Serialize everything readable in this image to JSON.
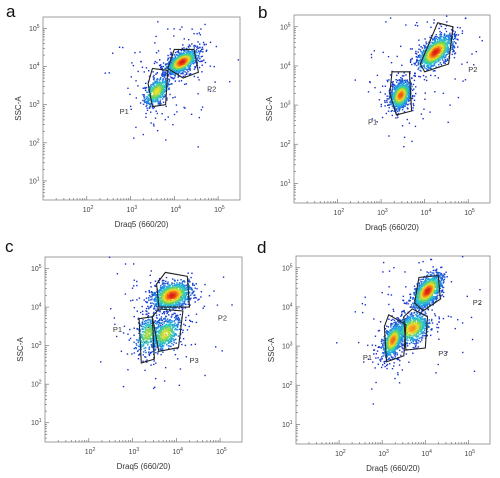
{
  "chart_data": [
    {
      "type": "scatter",
      "panel": "a",
      "xlabel": "Draq5 (660/20)",
      "ylabel": "SSC-A",
      "xlim": [
        1.0,
        5.5
      ],
      "ylim": [
        0.5,
        5.3
      ],
      "x_ticks": [
        {
          "v": 2,
          "label": "10^2"
        },
        {
          "v": 3,
          "label": "10^3"
        },
        {
          "v": 4,
          "label": "10^4"
        },
        {
          "v": 5,
          "label": "10^5"
        }
      ],
      "y_ticks": [
        {
          "v": 1,
          "label": "10^1"
        },
        {
          "v": 2,
          "label": "10^2"
        },
        {
          "v": 3,
          "label": "10^3"
        },
        {
          "v": 4,
          "label": "10^4"
        },
        {
          "v": 5,
          "label": "10^5"
        }
      ],
      "populations": [
        {
          "name": "P1",
          "x_log": 3.6,
          "y_log": 3.35,
          "sx": 0.15,
          "sy": 0.2,
          "rho": 0.5,
          "density": 0.45
        },
        {
          "name": "P2",
          "x_log": 4.18,
          "y_log": 4.12,
          "sx": 0.18,
          "sy": 0.16,
          "rho": 0.55,
          "density": 1.0
        }
      ],
      "gates": [
        {
          "name": "P1",
          "label_at": [
            2.75,
            2.75
          ],
          "vertices": [
            [
              3.4,
              3.55
            ],
            [
              3.5,
              3.95
            ],
            [
              3.85,
              3.9
            ],
            [
              3.8,
              3.0
            ],
            [
              3.5,
              2.95
            ]
          ]
        },
        {
          "name": "P2",
          "label_at": [
            4.75,
            3.35
          ],
          "vertices": [
            [
              3.85,
              3.95
            ],
            [
              4.0,
              4.45
            ],
            [
              4.45,
              4.45
            ],
            [
              4.55,
              3.85
            ],
            [
              4.2,
              3.7
            ]
          ]
        }
      ]
    },
    {
      "type": "scatter",
      "panel": "b",
      "xlabel": "Draq5 (660/20)",
      "ylabel": "SSC-A",
      "xlim": [
        1.0,
        5.5
      ],
      "ylim": [
        0.5,
        5.3
      ],
      "x_ticks": [
        {
          "v": 2,
          "label": "10^2"
        },
        {
          "v": 3,
          "label": "10^3"
        },
        {
          "v": 4,
          "label": "10^4"
        },
        {
          "v": 5,
          "label": "10^5"
        }
      ],
      "y_ticks": [
        {
          "v": 1,
          "label": "10^1"
        },
        {
          "v": 2,
          "label": "10^2"
        },
        {
          "v": 3,
          "label": "10^3"
        },
        {
          "v": 4,
          "label": "10^4"
        },
        {
          "v": 5,
          "label": "10^5"
        }
      ],
      "populations": [
        {
          "name": "P1",
          "x_log": 3.45,
          "y_log": 3.25,
          "sx": 0.12,
          "sy": 0.18,
          "rho": 0.35,
          "density": 0.85
        },
        {
          "name": "P2",
          "x_log": 4.25,
          "y_log": 4.35,
          "sx": 0.2,
          "sy": 0.22,
          "rho": 0.6,
          "density": 1.0
        }
      ],
      "gates": [
        {
          "name": "P1",
          "label_at": [
            2.7,
            2.5
          ],
          "vertices": [
            [
              3.2,
              3.3
            ],
            [
              3.25,
              3.85
            ],
            [
              3.65,
              3.85
            ],
            [
              3.7,
              2.85
            ],
            [
              3.35,
              2.75
            ]
          ]
        },
        {
          "name": "P2",
          "label_at": [
            5.0,
            3.85
          ],
          "vertices": [
            [
              3.9,
              4.05
            ],
            [
              4.3,
              5.1
            ],
            [
              4.65,
              5.0
            ],
            [
              4.55,
              4.05
            ],
            [
              4.0,
              3.85
            ]
          ]
        }
      ]
    },
    {
      "type": "scatter",
      "panel": "c",
      "xlabel": "Draq5 (660/20)",
      "ylabel": "SSC-A",
      "xlim": [
        1.0,
        5.5
      ],
      "ylim": [
        0.5,
        5.3
      ],
      "x_ticks": [
        {
          "v": 2,
          "label": "10^2"
        },
        {
          "v": 3,
          "label": "10^3"
        },
        {
          "v": 4,
          "label": "10^4"
        },
        {
          "v": 5,
          "label": "10^5"
        }
      ],
      "y_ticks": [
        {
          "v": 1,
          "label": "10^1"
        },
        {
          "v": 2,
          "label": "10^2"
        },
        {
          "v": 3,
          "label": "10^3"
        },
        {
          "v": 4,
          "label": "10^4"
        },
        {
          "v": 5,
          "label": "10^5"
        }
      ],
      "populations": [
        {
          "name": "P1",
          "x_log": 3.35,
          "y_log": 3.3,
          "sx": 0.15,
          "sy": 0.25,
          "rho": 0.4,
          "density": 0.3
        },
        {
          "name": "P2",
          "x_log": 3.9,
          "y_log": 4.3,
          "sx": 0.22,
          "sy": 0.18,
          "rho": 0.3,
          "density": 1.0
        },
        {
          "name": "P3",
          "x_log": 3.75,
          "y_log": 3.3,
          "sx": 0.18,
          "sy": 0.22,
          "rho": 0.4,
          "density": 0.45
        }
      ],
      "gates": [
        {
          "name": "P1",
          "label_at": [
            2.55,
            3.35
          ],
          "vertices": [
            [
              3.15,
              3.7
            ],
            [
              3.45,
              3.75
            ],
            [
              3.5,
              2.65
            ],
            [
              3.2,
              2.55
            ]
          ]
        },
        {
          "name": "P2",
          "label_at": [
            4.95,
            3.65
          ],
          "vertices": [
            [
              3.55,
              4.6
            ],
            [
              3.75,
              4.9
            ],
            [
              4.25,
              4.8
            ],
            [
              4.3,
              4.0
            ],
            [
              3.6,
              4.0
            ]
          ]
        },
        {
          "name": "P3",
          "label_at": [
            4.3,
            2.55
          ],
          "vertices": [
            [
              3.45,
              3.75
            ],
            [
              3.6,
              3.95
            ],
            [
              4.15,
              3.9
            ],
            [
              4.05,
              2.95
            ],
            [
              3.6,
              2.85
            ]
          ]
        }
      ]
    },
    {
      "type": "scatter",
      "panel": "d",
      "xlabel": "Draq5 (660/20)",
      "ylabel": "SSC-A",
      "xlim": [
        1.0,
        5.5
      ],
      "ylim": [
        0.5,
        5.3
      ],
      "x_ticks": [
        {
          "v": 2,
          "label": "10^2"
        },
        {
          "v": 3,
          "label": "10^3"
        },
        {
          "v": 4,
          "label": "10^4"
        },
        {
          "v": 5,
          "label": "10^5"
        }
      ],
      "y_ticks": [
        {
          "v": 1,
          "label": "10^1"
        },
        {
          "v": 2,
          "label": "10^2"
        },
        {
          "v": 3,
          "label": "10^3"
        },
        {
          "v": 4,
          "label": "10^4"
        },
        {
          "v": 5,
          "label": "10^5"
        }
      ],
      "populations": [
        {
          "name": "P1",
          "x_log": 3.25,
          "y_log": 3.15,
          "sx": 0.12,
          "sy": 0.22,
          "rho": 0.5,
          "density": 0.8
        },
        {
          "name": "P2",
          "x_log": 4.05,
          "y_log": 4.4,
          "sx": 0.17,
          "sy": 0.22,
          "rho": 0.55,
          "density": 1.0
        },
        {
          "name": "P3",
          "x_log": 3.7,
          "y_log": 3.45,
          "sx": 0.2,
          "sy": 0.2,
          "rho": 0.35,
          "density": 0.7
        }
      ],
      "gates": [
        {
          "name": "P1",
          "label_at": [
            2.55,
            2.65
          ],
          "vertices": [
            [
              3.05,
              3.5
            ],
            [
              3.15,
              3.8
            ],
            [
              3.55,
              3.55
            ],
            [
              3.5,
              2.75
            ],
            [
              3.1,
              2.6
            ]
          ]
        },
        {
          "name": "P2",
          "label_at": [
            5.1,
            4.05
          ],
          "vertices": [
            [
              3.75,
              4.1
            ],
            [
              3.85,
              4.75
            ],
            [
              4.3,
              4.8
            ],
            [
              4.35,
              4.2
            ],
            [
              3.95,
              3.9
            ]
          ]
        },
        {
          "name": "P3",
          "label_at": [
            4.3,
            2.75
          ],
          "vertices": [
            [
              3.5,
              3.75
            ],
            [
              3.7,
              3.95
            ],
            [
              4.05,
              3.75
            ],
            [
              4.0,
              2.95
            ],
            [
              3.55,
              2.9
            ]
          ]
        }
      ]
    }
  ],
  "panels": [
    {
      "letter": "a"
    },
    {
      "letter": "b"
    },
    {
      "letter": "c"
    },
    {
      "letter": "d"
    }
  ]
}
